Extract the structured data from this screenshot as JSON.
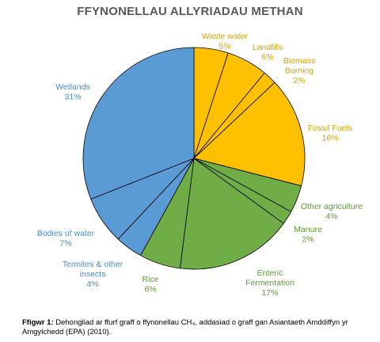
{
  "chart_data": {
    "type": "pie",
    "title": "FFYNONELLAU ALLYRIADAU METHAN",
    "slices": [
      {
        "label": "Waste water",
        "value": 5,
        "value_label": "5%",
        "color": "#FFC000"
      },
      {
        "label": "Landfills",
        "value": 6,
        "value_label": "6%",
        "color": "#FFC000"
      },
      {
        "label": "Biomass Burning",
        "value": 2,
        "value_label": "2%",
        "color": "#FFC000"
      },
      {
        "label": "Fossil Fuels",
        "value": 16,
        "value_label": "16%",
        "color": "#FFC000"
      },
      {
        "label": "Other agriculture",
        "value": 4,
        "value_label": "4%",
        "color": "#70AD47"
      },
      {
        "label": "Manure",
        "value": 2,
        "value_label": "2%",
        "color": "#70AD47"
      },
      {
        "label": "Enteric Fermentation",
        "value": 17,
        "value_label": "17%",
        "color": "#70AD47"
      },
      {
        "label": "Rice",
        "value": 6,
        "value_label": "6%",
        "color": "#70AD47"
      },
      {
        "label": "Termites & other insects",
        "value": 4,
        "value_label": "4%",
        "color": "#5B9BD5"
      },
      {
        "label": "Bodies of water",
        "value": 7,
        "value_label": "7%",
        "color": "#5B9BD5"
      },
      {
        "label": "Wetlands",
        "value": 31,
        "value_label": "31%",
        "color": "#5B9BD5"
      }
    ],
    "label_colors": {
      "yellow": "#D9A300",
      "green": "#5E9B33",
      "blue": "#4A8CCB"
    }
  },
  "caption": {
    "prefix": "Ffigwr 1:",
    "text": " Dehongliad ar ffurf graff o ffynonellau CH₄, addasiad o graff gan Asiantaeth Amddiffyn yr Amgylchedd (EPA) (2010)."
  }
}
